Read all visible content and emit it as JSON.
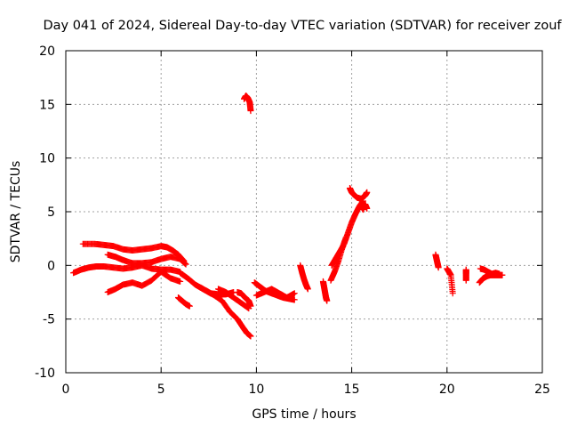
{
  "chart_data": {
    "type": "scatter",
    "title": "Day 041 of 2024, Sidereal Day-to-day VTEC variation (SDTVAR) for receiver zouf",
    "xlabel": "GPS time / hours",
    "ylabel": "SDTVAR / TECUs",
    "xlim": [
      0,
      25
    ],
    "ylim": [
      -10,
      20
    ],
    "xticks": [
      0,
      5,
      10,
      15,
      20,
      25
    ],
    "yticks": [
      -10,
      -5,
      0,
      5,
      10,
      15,
      20
    ],
    "xtick_labels": [
      "0",
      "5",
      "10",
      "15",
      "20",
      "25"
    ],
    "ytick_labels": [
      "-10",
      "-5",
      "0",
      "5",
      "10",
      "15",
      "20"
    ],
    "grid": true,
    "marker": "+",
    "color": "#ff0000",
    "series": [
      {
        "name": "arc-upper",
        "x": [
          0.9,
          1.5,
          2.0,
          2.5,
          3.0,
          3.5,
          4.0,
          4.5,
          5.0,
          5.3,
          5.6,
          5.9,
          6.2
        ],
        "y": [
          2.0,
          2.0,
          1.9,
          1.8,
          1.5,
          1.4,
          1.5,
          1.6,
          1.8,
          1.7,
          1.4,
          1.0,
          0.4
        ]
      },
      {
        "name": "arc-middle",
        "x": [
          2.2,
          2.6,
          3.0,
          3.5,
          4.0,
          4.5,
          5.0,
          5.5,
          6.0,
          6.3
        ],
        "y": [
          1.0,
          0.8,
          0.5,
          0.2,
          0.2,
          0.3,
          0.6,
          0.8,
          0.6,
          0.1
        ]
      },
      {
        "name": "arc-lower",
        "x": [
          0.4,
          0.8,
          1.2,
          1.6,
          2.0,
          2.5,
          3.0,
          3.5,
          4.0,
          4.5,
          5.0,
          5.5,
          6.0
        ],
        "y": [
          -0.7,
          -0.4,
          -0.2,
          -0.1,
          -0.1,
          -0.2,
          -0.3,
          -0.2,
          0.0,
          -0.3,
          -0.4,
          -0.4,
          -0.6
        ]
      },
      {
        "name": "arc-bottom",
        "x": [
          2.2,
          2.6,
          3.0,
          3.5,
          4.0,
          4.5,
          5.0,
          5.5,
          6.0
        ],
        "y": [
          -2.5,
          -2.2,
          -1.8,
          -1.6,
          -1.9,
          -1.4,
          -0.6,
          -1.2,
          -1.5
        ]
      },
      {
        "name": "blob-0600",
        "x": [
          5.9,
          6.1,
          6.3,
          6.5
        ],
        "y": [
          -3.0,
          -3.3,
          -3.6,
          -3.8
        ]
      },
      {
        "name": "arc-6to8",
        "x": [
          6.0,
          6.4,
          6.8,
          7.2,
          7.6,
          8.0,
          8.4,
          8.8
        ],
        "y": [
          -0.7,
          -1.2,
          -1.8,
          -2.2,
          -2.6,
          -2.7,
          -2.7,
          -2.5
        ]
      },
      {
        "name": "arc-7to9-lower",
        "x": [
          7.0,
          7.4,
          7.8,
          8.2,
          8.6,
          9.0,
          9.3,
          9.5,
          9.7
        ],
        "y": [
          -2.0,
          -2.4,
          -2.8,
          -3.3,
          -4.3,
          -5.0,
          -5.8,
          -6.3,
          -6.6
        ]
      },
      {
        "name": "arc-8to9",
        "x": [
          8.0,
          8.4,
          8.8,
          9.2,
          9.6
        ],
        "y": [
          -2.2,
          -2.5,
          -3.0,
          -3.5,
          -4.0
        ]
      },
      {
        "name": "cluster-0930",
        "x": [
          9.0,
          9.2,
          9.4,
          9.6,
          9.7
        ],
        "y": [
          -2.5,
          -2.6,
          -3.0,
          -3.3,
          -3.8
        ]
      },
      {
        "name": "spike-0930",
        "x": [
          9.35,
          9.45,
          9.55,
          9.65,
          9.7
        ],
        "y": [
          15.5,
          15.8,
          15.6,
          15.2,
          14.4
        ]
      },
      {
        "name": "arc-10to12",
        "x": [
          9.9,
          10.2,
          10.5,
          10.8,
          11.1,
          11.4,
          11.7,
          12.0
        ],
        "y": [
          -1.6,
          -2.0,
          -2.4,
          -2.6,
          -2.8,
          -3.0,
          -3.1,
          -3.2
        ]
      },
      {
        "name": "arc-10to12-b",
        "x": [
          10.0,
          10.4,
          10.8,
          11.2,
          11.6,
          12.0
        ],
        "y": [
          -2.8,
          -2.5,
          -2.2,
          -2.6,
          -3.0,
          -2.6
        ]
      },
      {
        "name": "arc-1230",
        "x": [
          12.3,
          12.4,
          12.5,
          12.6,
          12.7
        ],
        "y": [
          0.0,
          -0.7,
          -1.3,
          -1.8,
          -2.2
        ]
      },
      {
        "name": "arc-1330",
        "x": [
          13.5,
          13.55,
          13.6,
          13.65,
          13.7
        ],
        "y": [
          -1.5,
          -2.0,
          -2.5,
          -3.0,
          -3.3
        ]
      },
      {
        "name": "rise-14",
        "x": [
          13.9,
          14.1,
          14.3,
          14.5,
          14.7
        ],
        "y": [
          -1.4,
          -0.6,
          0.4,
          1.6,
          2.6
        ]
      },
      {
        "name": "rise-14b",
        "x": [
          13.95,
          14.15,
          14.35,
          14.55
        ],
        "y": [
          0.0,
          0.6,
          1.2,
          1.8
        ]
      },
      {
        "name": "rise-15",
        "x": [
          14.6,
          14.8,
          15.0,
          15.2,
          15.4,
          15.6
        ],
        "y": [
          2.0,
          3.0,
          4.0,
          4.8,
          5.5,
          6.0
        ]
      },
      {
        "name": "peak-15",
        "x": [
          14.9,
          15.0,
          15.1,
          15.3,
          15.5,
          15.7,
          15.8
        ],
        "y": [
          7.2,
          6.8,
          6.6,
          6.3,
          6.2,
          6.5,
          6.8
        ]
      },
      {
        "name": "tail-1530",
        "x": [
          15.5,
          15.6,
          15.7,
          15.8
        ],
        "y": [
          5.5,
          5.2,
          5.7,
          5.3
        ]
      },
      {
        "name": "pts-1930",
        "x": [
          19.4,
          19.45,
          19.5,
          19.55
        ],
        "y": [
          1.0,
          0.6,
          0.2,
          -0.2
        ]
      },
      {
        "name": "pts-2020",
        "x": [
          20.0,
          20.1,
          20.2,
          20.3
        ],
        "y": [
          -0.3,
          -0.6,
          -0.9,
          -2.6
        ]
      },
      {
        "name": "pts-21",
        "x": [
          21.0,
          21.0,
          21.0
        ],
        "y": [
          -0.4,
          -0.8,
          -1.4
        ]
      },
      {
        "name": "arc-22",
        "x": [
          21.7,
          21.9,
          22.1,
          22.3,
          22.5,
          22.7,
          22.9
        ],
        "y": [
          -1.6,
          -1.2,
          -1.0,
          -0.9,
          -0.9,
          -0.9,
          -0.9
        ]
      },
      {
        "name": "arc-22b",
        "x": [
          21.75,
          21.95,
          22.15,
          22.35,
          22.55,
          22.75
        ],
        "y": [
          -0.3,
          -0.4,
          -0.6,
          -0.8,
          -0.7,
          -0.8
        ]
      }
    ]
  }
}
